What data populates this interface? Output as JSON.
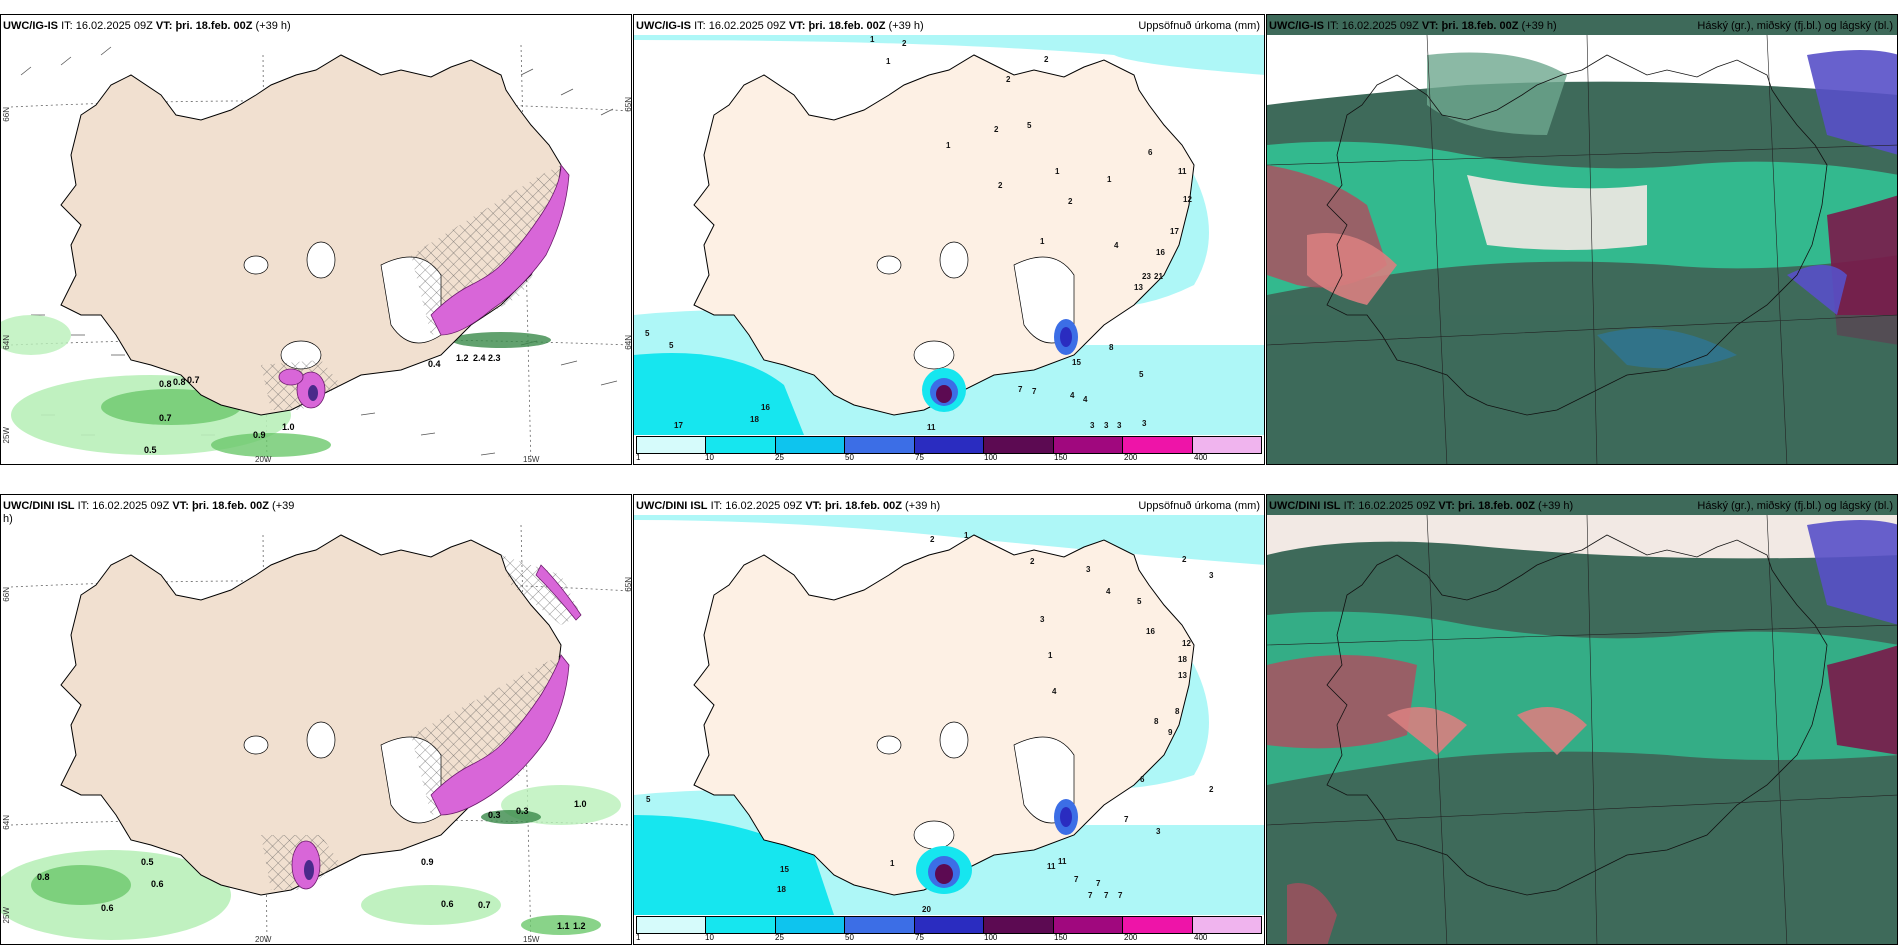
{
  "panels": {
    "top_left": {
      "model": "UWC/IG-IS",
      "it_label": "IT:",
      "it": "16.02.2025 09Z",
      "vt_label": "VT:",
      "vt": "þri. 18.feb. 00Z",
      "lead": "(+39 h)"
    },
    "top_mid": {
      "model": "UWC/IG-IS",
      "it_label": "IT:",
      "it": "16.02.2025 09Z",
      "vt_label": "VT:",
      "vt": "þri. 18.feb. 00Z",
      "lead": "(+39 h)",
      "right_title": "Uppsöfnuð úrkoma (mm)"
    },
    "top_right": {
      "model": "UWC/IG-IS",
      "it_label": "IT:",
      "it": "16.02.2025 09Z",
      "vt_label": "VT:",
      "vt": "þri. 18.feb. 00Z",
      "lead": "(+39 h)",
      "right_title": "Háský (gr.), miðský (fj.bl.) og lágský (bl.)"
    },
    "bot_left": {
      "model": "UWC/DINI ISL",
      "it_label": "IT:",
      "it": "16.02.2025 09Z",
      "vt_label": "VT:",
      "vt": "þri. 18.feb. 00Z",
      "lead": "(+39",
      "lead2": "h)"
    },
    "bot_mid": {
      "model": "UWC/DINI ISL",
      "it_label": "IT:",
      "it": "16.02.2025 09Z",
      "vt_label": "VT:",
      "vt": "þri. 18.feb. 00Z",
      "lead": "(+39 h)",
      "right_title": "Uppsöfnuð úrkoma (mm)"
    },
    "bot_right": {
      "model": "UWC/DINI ISL",
      "it_label": "IT:",
      "it": "16.02.2025 09Z",
      "vt_label": "VT:",
      "vt": "þri. 18.feb. 00Z",
      "lead": "(+39 h)",
      "right_title": "Háský (gr.), miðský (fj.bl.) og lágský (bl.)"
    }
  },
  "grid_labels": {
    "lat66": "66N",
    "lat64": "64N",
    "lat65": "65N",
    "lon25": "25W",
    "lon20": "20W",
    "lon15": "15W"
  },
  "legend": {
    "ticks": [
      "1",
      "10",
      "25",
      "50",
      "75",
      "100",
      "150",
      "200",
      "400"
    ],
    "colors": [
      "#d6fbfb",
      "#16e6ef",
      "#0ec4ee",
      "#3c6ee6",
      "#2a2cc0",
      "#5c0a52",
      "#a0087e",
      "#ee14a8",
      "#f0b4ee"
    ]
  },
  "ice_values_top": [
    "0.8",
    "0.8",
    "0.7",
    "0.7",
    "0.5",
    "0.9",
    "1.0",
    "1.2",
    "2.4",
    "2.3",
    "0.4"
  ],
  "ice_values_bot": [
    "0.8",
    "0.5",
    "0.6",
    "0.6",
    "0.9",
    "0.6",
    "0.7",
    "0.3",
    "0.3",
    "1.0",
    "1.1",
    "1.2"
  ],
  "precip_top": [
    "1",
    "2",
    "1",
    "2",
    "2",
    "5",
    "2",
    "1",
    "6",
    "11",
    "12",
    "17",
    "16",
    "13",
    "23",
    "21",
    "15",
    "8",
    "5",
    "7",
    "7",
    "4",
    "4",
    "3",
    "3",
    "3",
    "3",
    "11",
    "16",
    "18",
    "17",
    "5",
    "5",
    "1",
    "2",
    "1",
    "1",
    "2",
    "4"
  ],
  "precip_bot": [
    "2",
    "1",
    "3",
    "4",
    "2",
    "3",
    "16",
    "18",
    "12",
    "13",
    "9",
    "8",
    "6",
    "7",
    "11",
    "7",
    "7",
    "5",
    "3",
    "2",
    "20",
    "15",
    "18",
    "1",
    "2",
    "3",
    "5",
    "1",
    "4",
    "8",
    "11",
    "7",
    "7",
    "7"
  ]
}
